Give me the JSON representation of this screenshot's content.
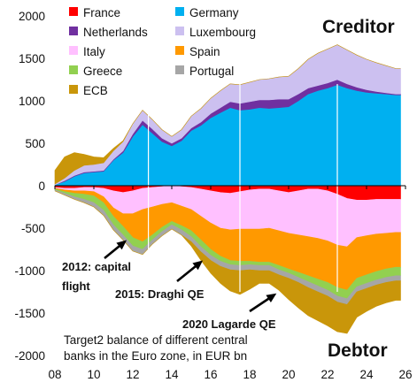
{
  "chart_data": {
    "type": "area",
    "subtype": "stacked area, positive and negative",
    "x_ticks": [
      "08",
      "10",
      "12",
      "14",
      "16",
      "18",
      "20",
      "22",
      "24",
      "26"
    ],
    "y_ticks": [
      "2000",
      "1500",
      "1000",
      "500",
      "0",
      "-500",
      "-1000",
      "-1500",
      "-2000"
    ],
    "xlim": [
      2008,
      2026
    ],
    "ylim": [
      -2000,
      2000
    ],
    "grid": false,
    "vertical_reference_lines_x": [
      2012.8,
      2017.5,
      2022.5
    ],
    "legend_position": "top-left",
    "legend": [
      {
        "label": "France",
        "color": "#ff0000"
      },
      {
        "label": "Germany",
        "color": "#00b0f0"
      },
      {
        "label": "Netherlands",
        "color": "#7030a0"
      },
      {
        "label": "Luxembourg",
        "color": "#ccc0f0"
      },
      {
        "label": "Italy",
        "color": "#ffc0ff"
      },
      {
        "label": "Spain",
        "color": "#ff9900"
      },
      {
        "label": "Greece",
        "color": "#92d050"
      },
      {
        "label": "Portugal",
        "color": "#a6a6a6"
      },
      {
        "label": "ECB",
        "color": "#c9960a"
      }
    ],
    "x": [
      2008.0,
      2008.5,
      2009.0,
      2009.5,
      2010.0,
      2010.5,
      2011.0,
      2011.5,
      2012.0,
      2012.5,
      2013.0,
      2013.5,
      2014.0,
      2014.5,
      2015.0,
      2015.5,
      2016.0,
      2016.5,
      2017.0,
      2017.5,
      2018.0,
      2018.5,
      2019.0,
      2019.5,
      2020.0,
      2020.5,
      2021.0,
      2021.5,
      2022.0,
      2022.5,
      2023.0,
      2023.5,
      2024.0,
      2024.5,
      2025.0,
      2025.5
    ],
    "positive_series": [
      {
        "name": "Germany",
        "color": "#00b0f0",
        "values": [
          10,
          50,
          110,
          150,
          160,
          170,
          300,
          390,
          580,
          720,
          620,
          520,
          470,
          530,
          650,
          710,
          800,
          860,
          920,
          890,
          900,
          920,
          910,
          920,
          930,
          1000,
          1080,
          1120,
          1150,
          1190,
          1150,
          1120,
          1100,
          1090,
          1080,
          1070
        ]
      },
      {
        "name": "Netherlands",
        "color": "#7030a0",
        "values": [
          0,
          10,
          10,
          10,
          10,
          10,
          10,
          20,
          30,
          50,
          50,
          40,
          30,
          30,
          30,
          40,
          50,
          60,
          70,
          80,
          90,
          90,
          100,
          100,
          90,
          80,
          70,
          60,
          60,
          60,
          50,
          40,
          30,
          20,
          15,
          10
        ]
      },
      {
        "name": "Luxembourg",
        "color": "#ccc0f0",
        "values": [
          10,
          30,
          60,
          80,
          80,
          90,
          100,
          110,
          120,
          120,
          110,
          100,
          80,
          100,
          140,
          160,
          180,
          200,
          210,
          220,
          230,
          240,
          250,
          260,
          270,
          300,
          340,
          380,
          400,
          410,
          400,
          380,
          360,
          340,
          320,
          300
        ]
      },
      {
        "name": "ECB (creditor phase)",
        "color": "#c9960a",
        "values": [
          160,
          250,
          210,
          130,
          90,
          60,
          30,
          10,
          0,
          0,
          0,
          0,
          0,
          0,
          0,
          0,
          0,
          0,
          0,
          0,
          0,
          0,
          0,
          0,
          0,
          0,
          0,
          0,
          0,
          0,
          0,
          0,
          0,
          0,
          0,
          0
        ]
      }
    ],
    "negative_series": [
      {
        "name": "France",
        "color": "#ff0000",
        "values": [
          -20,
          -30,
          -30,
          -20,
          -20,
          -30,
          -60,
          -80,
          -60,
          -30,
          -20,
          -10,
          0,
          -10,
          -20,
          -40,
          -60,
          -80,
          -90,
          -70,
          -50,
          -40,
          -40,
          -60,
          -80,
          -60,
          -40,
          -40,
          -60,
          -100,
          -150,
          -170,
          -170,
          -160,
          -160,
          -160
        ]
      },
      {
        "name": "Italy",
        "color": "#ffc0ff",
        "values": [
          -10,
          -20,
          -30,
          -40,
          -50,
          -100,
          -200,
          -250,
          -270,
          -250,
          -230,
          -210,
          -200,
          -230,
          -260,
          -320,
          -380,
          -420,
          -430,
          -440,
          -460,
          -470,
          -460,
          -470,
          -480,
          -520,
          -560,
          -580,
          -590,
          -600,
          -570,
          -440,
          -420,
          -410,
          -400,
          -390
        ]
      },
      {
        "name": "Spain",
        "color": "#ff9900",
        "values": [
          -10,
          -20,
          -30,
          -40,
          -50,
          -70,
          -100,
          -150,
          -280,
          -380,
          -330,
          -270,
          -220,
          -230,
          -250,
          -280,
          -310,
          -330,
          -360,
          -380,
          -380,
          -390,
          -400,
          -410,
          -420,
          -440,
          -460,
          -480,
          -490,
          -500,
          -510,
          -480,
          -460,
          -440,
          -420,
          -410
        ]
      },
      {
        "name": "Greece",
        "color": "#92d050",
        "values": [
          -10,
          -20,
          -40,
          -60,
          -80,
          -90,
          -100,
          -100,
          -100,
          -90,
          -60,
          -50,
          -40,
          -50,
          -70,
          -80,
          -70,
          -60,
          -50,
          -50,
          -40,
          -40,
          -40,
          -50,
          -50,
          -60,
          -70,
          -80,
          -90,
          -100,
          -100,
          -100,
          -100,
          -100,
          -100,
          -100
        ]
      },
      {
        "name": "Portugal",
        "color": "#a6a6a6",
        "values": [
          -10,
          -20,
          -30,
          -40,
          -50,
          -60,
          -60,
          -60,
          -60,
          -60,
          -50,
          -50,
          -50,
          -60,
          -60,
          -60,
          -60,
          -60,
          -60,
          -60,
          -60,
          -60,
          -60,
          -60,
          -60,
          -60,
          -70,
          -70,
          -70,
          -70,
          -70,
          -60,
          -60,
          -60,
          -60,
          -60
        ]
      },
      {
        "name": "ECB",
        "color": "#c9960a",
        "values": [
          0,
          0,
          0,
          0,
          0,
          0,
          0,
          0,
          0,
          0,
          0,
          0,
          0,
          0,
          -50,
          -100,
          -150,
          -200,
          -250,
          -280,
          -230,
          -150,
          -150,
          -180,
          -250,
          -300,
          -330,
          -340,
          -350,
          -350,
          -340,
          -300,
          -270,
          -250,
          -240,
          -230
        ]
      }
    ],
    "corner_labels": {
      "top": "Creditor",
      "bottom": "Debtor"
    },
    "annotations": [
      {
        "text_lines": [
          "2012: capital",
          "flight"
        ]
      },
      {
        "text_lines": [
          "2015: Draghi QE"
        ]
      },
      {
        "text_lines": [
          "2020 Lagarde QE"
        ]
      }
    ],
    "caption_lines": [
      "Target2 balance of different central",
      "banks in the Euro zone, in EUR bn"
    ]
  }
}
